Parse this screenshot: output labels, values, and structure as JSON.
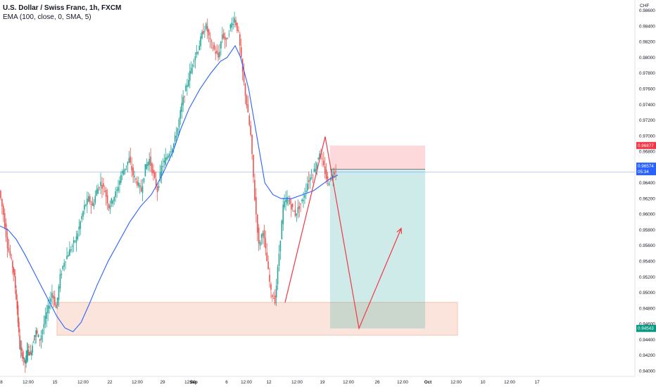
{
  "header": {
    "title": "U.S. Dollar / Swiss Franc, 1h, FXCM",
    "indicator": "EMA (100, close, 0, SMA, 5)"
  },
  "chart_data": {
    "type": "candlestick",
    "currency": "CHF",
    "y_ticks": [
      "0.98600",
      "0.98400",
      "0.98200",
      "0.98000",
      "0.97800",
      "0.97600",
      "0.97400",
      "0.97200",
      "0.97000",
      "0.96800",
      "0.96600",
      "0.96400",
      "0.96200",
      "0.96000",
      "0.95800",
      "0.95600",
      "0.95400",
      "0.95200",
      "0.95000",
      "0.94800",
      "0.94600",
      "0.94400",
      "0.94200",
      "0.94000"
    ],
    "x_ticks": [
      "8",
      "12:00",
      "15",
      "12:00",
      "22",
      "12:00",
      "29",
      "12:00",
      "Sep",
      "6",
      "12:00",
      "12",
      "12:00",
      "19",
      "12:00",
      "26",
      "12:00",
      "Oct",
      "12:00",
      "10",
      "12:00",
      "17"
    ],
    "ylim": [
      0.9393,
      0.9868
    ],
    "last_price": "0.96574",
    "countdown": "05:34",
    "stop_label": "0.96877",
    "target_label": "0.94543",
    "colors": {
      "up": "#26a69a",
      "down": "#ef5350",
      "ema": "#2962ff",
      "zone": "#f5c4b0",
      "profit": "#26a69a",
      "loss": "#f7525f",
      "projection": "#f23645",
      "last_tag": "#2962ff",
      "stop_tag": "#f23645",
      "target_tag": "#089981"
    },
    "ema_points": [
      [
        0,
        0.9585
      ],
      [
        6,
        0.958
      ],
      [
        12,
        0.9568
      ],
      [
        18,
        0.955
      ],
      [
        24,
        0.953
      ],
      [
        30,
        0.951
      ],
      [
        36,
        0.949
      ],
      [
        42,
        0.947
      ],
      [
        48,
        0.9455
      ],
      [
        54,
        0.945
      ],
      [
        60,
        0.9462
      ],
      [
        66,
        0.9485
      ],
      [
        72,
        0.951
      ],
      [
        80,
        0.954
      ],
      [
        88,
        0.9565
      ],
      [
        96,
        0.959
      ],
      [
        104,
        0.961
      ],
      [
        112,
        0.9625
      ],
      [
        120,
        0.965
      ],
      [
        128,
        0.968
      ],
      [
        134,
        0.971
      ],
      [
        140,
        0.9735
      ],
      [
        148,
        0.976
      ],
      [
        156,
        0.978
      ],
      [
        163,
        0.9795
      ],
      [
        168,
        0.98
      ],
      [
        174,
        0.9815
      ],
      [
        178,
        0.98
      ],
      [
        184,
        0.976
      ],
      [
        190,
        0.97
      ],
      [
        196,
        0.964
      ],
      [
        202,
        0.9625
      ],
      [
        208,
        0.962
      ],
      [
        216,
        0.962
      ],
      [
        224,
        0.9625
      ],
      [
        232,
        0.963
      ],
      [
        240,
        0.964
      ],
      [
        244,
        0.9645
      ],
      [
        250,
        0.965
      ]
    ],
    "price_path": [
      [
        0,
        0.963
      ],
      [
        3,
        0.96
      ],
      [
        6,
        0.956
      ],
      [
        9,
        0.954
      ],
      [
        11,
        0.952
      ],
      [
        13,
        0.948
      ],
      [
        15,
        0.943
      ],
      [
        17,
        0.942
      ],
      [
        19,
        0.941
      ],
      [
        21,
        0.943
      ],
      [
        23,
        0.942
      ],
      [
        25,
        0.944
      ],
      [
        27,
        0.945
      ],
      [
        30,
        0.944
      ],
      [
        33,
        0.946
      ],
      [
        36,
        0.948
      ],
      [
        39,
        0.95
      ],
      [
        42,
        0.948
      ],
      [
        45,
        0.952
      ],
      [
        48,
        0.954
      ],
      [
        51,
        0.955
      ],
      [
        54,
        0.956
      ],
      [
        57,
        0.957
      ],
      [
        60,
        0.959
      ],
      [
        63,
        0.961
      ],
      [
        66,
        0.962
      ],
      [
        69,
        0.961
      ],
      [
        72,
        0.963
      ],
      [
        75,
        0.964
      ],
      [
        78,
        0.963
      ],
      [
        81,
        0.961
      ],
      [
        84,
        0.962
      ],
      [
        87,
        0.963
      ],
      [
        90,
        0.965
      ],
      [
        93,
        0.966
      ],
      [
        96,
        0.967
      ],
      [
        99,
        0.965
      ],
      [
        102,
        0.964
      ],
      [
        105,
        0.963
      ],
      [
        108,
        0.966
      ],
      [
        111,
        0.967
      ],
      [
        114,
        0.965
      ],
      [
        117,
        0.963
      ],
      [
        120,
        0.966
      ],
      [
        123,
        0.967
      ],
      [
        126,
        0.968
      ],
      [
        129,
        0.969
      ],
      [
        132,
        0.971
      ],
      [
        135,
        0.974
      ],
      [
        138,
        0.976
      ],
      [
        141,
        0.978
      ],
      [
        144,
        0.98
      ],
      [
        147,
        0.981
      ],
      [
        150,
        0.983
      ],
      [
        153,
        0.984
      ],
      [
        156,
        0.982
      ],
      [
        159,
        0.981
      ],
      [
        162,
        0.98
      ],
      [
        165,
        0.983
      ],
      [
        168,
        0.982
      ],
      [
        171,
        0.984
      ],
      [
        174,
        0.985
      ],
      [
        177,
        0.983
      ],
      [
        180,
        0.978
      ],
      [
        183,
        0.974
      ],
      [
        186,
        0.97
      ],
      [
        189,
        0.962
      ],
      [
        192,
        0.956
      ],
      [
        195,
        0.958
      ],
      [
        198,
        0.954
      ],
      [
        201,
        0.95
      ],
      [
        204,
        0.949
      ],
      [
        207,
        0.955
      ],
      [
        210,
        0.961
      ],
      [
        213,
        0.962
      ],
      [
        216,
        0.961
      ],
      [
        219,
        0.96
      ],
      [
        222,
        0.961
      ],
      [
        225,
        0.962
      ],
      [
        228,
        0.964
      ],
      [
        231,
        0.965
      ],
      [
        234,
        0.966
      ],
      [
        237,
        0.968
      ],
      [
        240,
        0.966
      ],
      [
        243,
        0.964
      ],
      [
        246,
        0.965
      ],
      [
        249,
        0.9657
      ]
    ],
    "zone": {
      "x_from": 81,
      "x_to": 650,
      "y_top": 0.94875,
      "y_bottom": 0.94457
    },
    "position": {
      "entry": 0.96574,
      "stop": 0.96877,
      "target": 0.94543
    },
    "projection": [
      [
        0.94875,
        405
      ],
      [
        0.9699,
        462
      ],
      [
        0.94543,
        510
      ],
      [
        0.9582,
        570
      ]
    ]
  }
}
